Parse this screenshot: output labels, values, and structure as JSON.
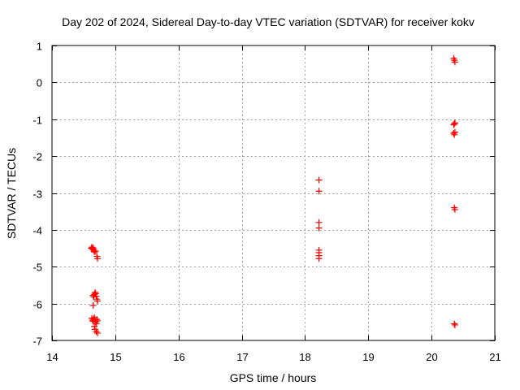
{
  "chart_data": {
    "type": "scatter",
    "title": "Day 202 of 2024, Sidereal Day-to-day VTEC variation (SDTVAR) for receiver kokv",
    "xlabel": "GPS time / hours",
    "ylabel": "SDTVAR / TECUs",
    "xlim": [
      14,
      21
    ],
    "ylim": [
      -7,
      1
    ],
    "x_ticks": [
      14,
      15,
      16,
      17,
      18,
      19,
      20,
      21
    ],
    "y_ticks": [
      1,
      0,
      -1,
      -2,
      -3,
      -4,
      -5,
      -6,
      -7
    ],
    "x_tick_labels": [
      "14",
      "15",
      "16",
      "17",
      "18",
      "19",
      "20",
      "21"
    ],
    "y_tick_labels": [
      "1",
      "0",
      "-1",
      "-2",
      "-3",
      "-4",
      "-5",
      "-6",
      "-7"
    ],
    "grid": true,
    "legend": "none",
    "marker": "plus",
    "series": [
      {
        "name": "SDTVAR",
        "color": "#ff0000",
        "x": [
          14.62,
          14.63,
          14.64,
          14.65,
          14.66,
          14.67,
          14.69,
          14.71,
          14.72,
          14.65,
          14.66,
          14.67,
          14.68,
          14.69,
          14.7,
          14.71,
          14.72,
          14.63,
          14.64,
          14.65,
          14.66,
          14.67,
          14.68,
          14.69,
          14.7,
          14.71,
          14.72,
          14.65,
          14.67,
          14.68,
          14.7,
          14.72,
          18.22,
          18.22,
          18.22,
          18.22,
          18.22,
          18.22,
          18.22,
          18.22,
          20.35,
          20.36,
          20.37,
          20.35,
          20.36,
          20.37,
          20.35,
          20.36,
          20.37,
          20.36,
          20.37,
          20.36,
          20.37
        ],
        "y": [
          -4.5,
          -4.47,
          -4.52,
          -4.49,
          -4.55,
          -4.6,
          -4.58,
          -4.72,
          -4.78,
          -5.78,
          -5.82,
          -5.75,
          -5.7,
          -5.73,
          -5.8,
          -5.88,
          -5.93,
          -6.4,
          -6.45,
          -6.48,
          -6.42,
          -6.38,
          -6.44,
          -6.5,
          -6.55,
          -6.43,
          -6.47,
          -6.05,
          -6.62,
          -6.7,
          -6.76,
          -6.8,
          -2.65,
          -2.95,
          -3.8,
          -3.95,
          -4.55,
          -4.62,
          -4.7,
          -4.78,
          0.65,
          0.6,
          0.55,
          -1.15,
          -1.12,
          -1.35,
          -1.38,
          -3.4,
          -3.45,
          -6.55,
          -6.58,
          -1.42,
          -1.1
        ]
      }
    ]
  }
}
